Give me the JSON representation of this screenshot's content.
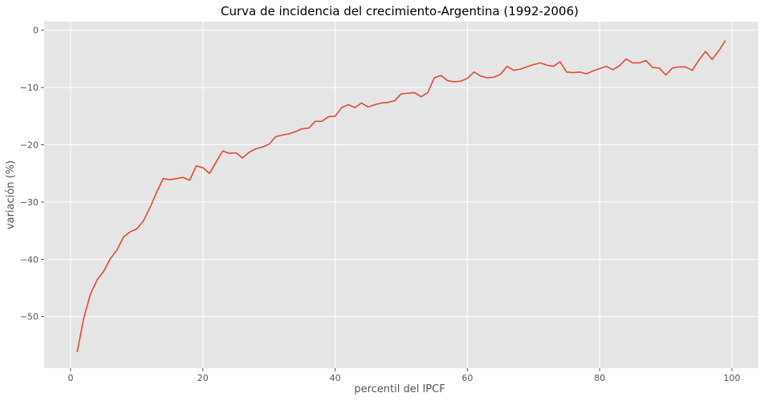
{
  "chart_data": {
    "type": "line",
    "title": "Curva de incidencia del crecimiento-Argentina (1992-2006)",
    "xlabel": "percentil del IPCF",
    "ylabel": "variación (%)",
    "xlim": [
      -4,
      104
    ],
    "ylim": [
      -59,
      1.5
    ],
    "xticks": [
      0,
      20,
      40,
      60,
      80,
      100
    ],
    "yticks": [
      0,
      -10,
      -20,
      -30,
      -40,
      -50
    ],
    "grid": true,
    "colors": {
      "line": "#E24A33",
      "plot_bg": "#E5E5E5",
      "grid": "#FFFFFF"
    },
    "x": [
      1,
      2,
      3,
      4,
      5,
      6,
      7,
      8,
      9,
      10,
      11,
      12,
      13,
      14,
      15,
      16,
      17,
      18,
      19,
      20,
      21,
      22,
      23,
      24,
      25,
      26,
      27,
      28,
      29,
      30,
      31,
      32,
      33,
      34,
      35,
      36,
      37,
      38,
      39,
      40,
      41,
      42,
      43,
      44,
      45,
      46,
      47,
      48,
      49,
      50,
      51,
      52,
      53,
      54,
      55,
      56,
      57,
      58,
      59,
      60,
      61,
      62,
      63,
      64,
      65,
      66,
      67,
      68,
      69,
      70,
      71,
      72,
      73,
      74,
      75,
      76,
      77,
      78,
      79,
      80,
      81,
      82,
      83,
      84,
      85,
      86,
      87,
      88,
      89,
      90,
      91,
      92,
      93,
      94,
      95,
      96,
      97,
      98,
      99
    ],
    "y": [
      -56.2,
      -50.2,
      -46.1,
      -43.6,
      -42.1,
      -39.9,
      -38.4,
      -36.1,
      -35.2,
      -34.7,
      -33.3,
      -31.0,
      -28.3,
      -25.9,
      -26.1,
      -25.9,
      -25.7,
      -26.2,
      -23.7,
      -24.0,
      -25.0,
      -23.0,
      -21.1,
      -21.5,
      -21.4,
      -22.3,
      -21.3,
      -20.7,
      -20.4,
      -19.9,
      -18.6,
      -18.3,
      -18.1,
      -17.7,
      -17.2,
      -17.1,
      -15.9,
      -15.9,
      -15.1,
      -15.0,
      -13.5,
      -13.0,
      -13.5,
      -12.7,
      -13.4,
      -13.0,
      -12.7,
      -12.6,
      -12.3,
      -11.1,
      -11.0,
      -10.9,
      -11.6,
      -10.9,
      -8.3,
      -7.9,
      -8.8,
      -9.0,
      -8.9,
      -8.4,
      -7.3,
      -8.0,
      -8.3,
      -8.2,
      -7.7,
      -6.3,
      -7.0,
      -6.8,
      -6.4,
      -6.0,
      -5.7,
      -6.1,
      -6.3,
      -5.5,
      -7.3,
      -7.4,
      -7.3,
      -7.6,
      -7.1,
      -6.7,
      -6.3,
      -6.9,
      -6.2,
      -5.0,
      -5.7,
      -5.7,
      -5.3,
      -6.5,
      -6.6,
      -7.8,
      -6.6,
      -6.4,
      -6.4,
      -7.0,
      -5.2,
      -3.7,
      -5.1,
      -3.6,
      -1.8
    ]
  }
}
